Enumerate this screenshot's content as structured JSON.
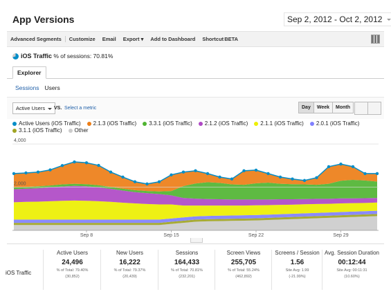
{
  "header": {
    "title": "App Versions",
    "date_range": "Sep 2, 2012 - Oct 2, 2012"
  },
  "toolbar": [
    "Advanced Segments",
    "Customize",
    "Email",
    "Export",
    "Add to Dashboard",
    "Shortcut"
  ],
  "toolbar_badge": "BETA",
  "segment": {
    "name": "iOS Traffic",
    "detail": "% of sessions: 70.81%"
  },
  "tab": "Explorer",
  "subtabs": [
    "Sessions",
    "Users"
  ],
  "controls": {
    "metric": "Active Users",
    "vs": "VS.",
    "select": "Select a metric",
    "periods": [
      "Day",
      "Week",
      "Month"
    ]
  },
  "chart_data": {
    "type": "area",
    "stacked": true,
    "grid": true,
    "categories": [
      null,
      null,
      null,
      null,
      null,
      null,
      "Sep 8",
      null,
      null,
      null,
      null,
      null,
      null,
      "Sep 15",
      null,
      null,
      null,
      null,
      null,
      null,
      "Sep 22",
      null,
      null,
      null,
      null,
      null,
      null,
      "Sep 29",
      null,
      null,
      null
    ],
    "ylim": [
      0,
      4100
    ],
    "yticks": [
      {
        "value": 2000,
        "label": "2,000"
      },
      {
        "value": 4000,
        "label": "4,000"
      }
    ],
    "series": [
      {
        "name": "Active Users (iOS Traffic)",
        "type": "line",
        "color": "#058dc7",
        "values": [
          2630,
          2660,
          2700,
          2800,
          3000,
          3170,
          3130,
          3010,
          2700,
          2470,
          2250,
          2150,
          2250,
          2570,
          2700,
          2760,
          2630,
          2470,
          2380,
          2760,
          2790,
          2630,
          2470,
          2380,
          2310,
          2440,
          2950,
          3070,
          2950,
          2630,
          2630
        ]
      },
      {
        "name": "2.1.3 (iOS Traffic)",
        "color": "#ed7e17",
        "values": [
          650,
          650,
          660,
          720,
          870,
          1010,
          990,
          920,
          690,
          540,
          390,
          330,
          450,
          750,
          650,
          590,
          400,
          270,
          250,
          650,
          610,
          420,
          310,
          240,
          180,
          330,
          790,
          770,
          610,
          320,
          370
        ]
      },
      {
        "name": "3.3.1 (iOS Traffic)",
        "color": "#50b432",
        "values": [
          80,
          80,
          90,
          90,
          100,
          100,
          100,
          100,
          90,
          90,
          90,
          100,
          120,
          200,
          550,
          700,
          780,
          760,
          700,
          680,
          750,
          780,
          720,
          700,
          680,
          650,
          700,
          820,
          860,
          820,
          760
        ]
      },
      {
        "name": "2.1.2 (iOS Traffic)",
        "color": "#af49c5",
        "values": [
          600,
          610,
          620,
          640,
          660,
          680,
          670,
          640,
          600,
          560,
          520,
          500,
          480,
          420,
          350,
          320,
          300,
          290,
          280,
          280,
          270,
          260,
          260,
          250,
          240,
          240,
          230,
          230,
          220,
          220,
          210
        ]
      },
      {
        "name": "2.1.1 (iOS Traffic)",
        "color": "#edef00",
        "values": [
          800,
          820,
          830,
          850,
          870,
          880,
          870,
          850,
          820,
          780,
          750,
          720,
          700,
          650,
          550,
          500,
          480,
          470,
          460,
          450,
          450,
          440,
          430,
          420,
          420,
          410,
          400,
          400,
          390,
          380,
          380
        ]
      },
      {
        "name": "2.0.1 (iOS Traffic)",
        "color": "#8080ff",
        "values": [
          150,
          150,
          150,
          150,
          150,
          150,
          150,
          150,
          150,
          150,
          150,
          150,
          150,
          150,
          150,
          150,
          150,
          150,
          150,
          150,
          150,
          150,
          150,
          150,
          150,
          150,
          150,
          150,
          150,
          150,
          150
        ]
      },
      {
        "name": "3.1.1 (iOS Traffic)",
        "color": "#a0a424",
        "values": [
          100,
          100,
          100,
          100,
          100,
          100,
          100,
          100,
          100,
          100,
          100,
          100,
          100,
          100,
          100,
          100,
          100,
          100,
          100,
          100,
          100,
          100,
          100,
          100,
          100,
          100,
          100,
          100,
          100,
          100,
          100
        ]
      },
      {
        "name": "Other",
        "color": "#cccccc",
        "values": [
          250,
          250,
          250,
          250,
          250,
          250,
          250,
          250,
          250,
          250,
          250,
          250,
          250,
          300,
          350,
          400,
          420,
          430,
          440,
          450,
          460,
          480,
          500,
          520,
          540,
          560,
          580,
          600,
          620,
          640,
          660
        ]
      }
    ]
  },
  "summary": {
    "row_label": "iOS Traffic",
    "columns": [
      {
        "name": "Active Users",
        "value": "24,496",
        "share": "% of Total: 79.40%",
        "total": "(30,852)"
      },
      {
        "name": "New Users",
        "value": "16,222",
        "share": "% of Total: 79.37%",
        "total": "(20,439)"
      },
      {
        "name": "Sessions",
        "value": "164,433",
        "share": "% of Total: 70.81%",
        "total": "(232,201)"
      },
      {
        "name": "Screen Views",
        "value": "255,705",
        "share": "% of Total: 55.24%",
        "total": "(462,892)"
      },
      {
        "name": "Screens / Session",
        "value": "1.56",
        "share": "Site Avg: 1.99",
        "total": "(-21.99%)"
      },
      {
        "name": "Avg. Session Duration",
        "value": "00:12:44",
        "share": "Site Avg: 00:11:31",
        "total": "(10.60%)"
      }
    ]
  }
}
